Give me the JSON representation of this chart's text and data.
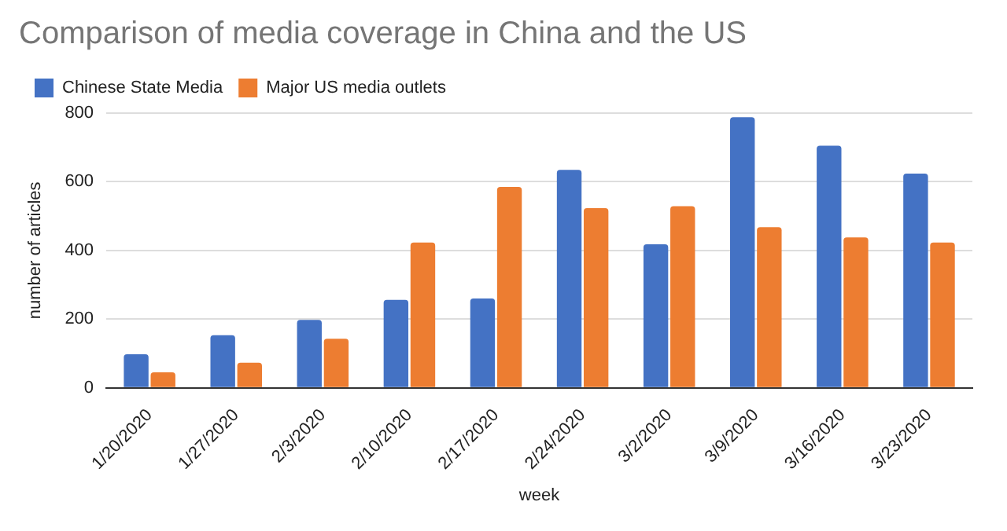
{
  "chart_data": {
    "type": "bar",
    "title": "Comparison of media coverage in China and the US",
    "xlabel": "week",
    "ylabel": "number of articles",
    "categories": [
      "1/20/2020",
      "1/27/2020",
      "2/3/2020",
      "2/10/2020",
      "2/17/2020",
      "2/24/2020",
      "3/2/2020",
      "3/9/2020",
      "3/16/2020",
      "3/23/2020"
    ],
    "series": [
      {
        "name": "Chinese State Media",
        "color": "#4472c4",
        "values": [
          98,
          153,
          198,
          256,
          260,
          635,
          418,
          788,
          705,
          624
        ]
      },
      {
        "name": "Major US media outlets",
        "color": "#ed7d31",
        "values": [
          45,
          73,
          143,
          423,
          585,
          523,
          529,
          468,
          438,
          423
        ]
      }
    ],
    "ylim": [
      0,
      800
    ],
    "yticks": [
      0,
      200,
      400,
      600,
      800
    ],
    "grid": "y",
    "legend": "top"
  }
}
